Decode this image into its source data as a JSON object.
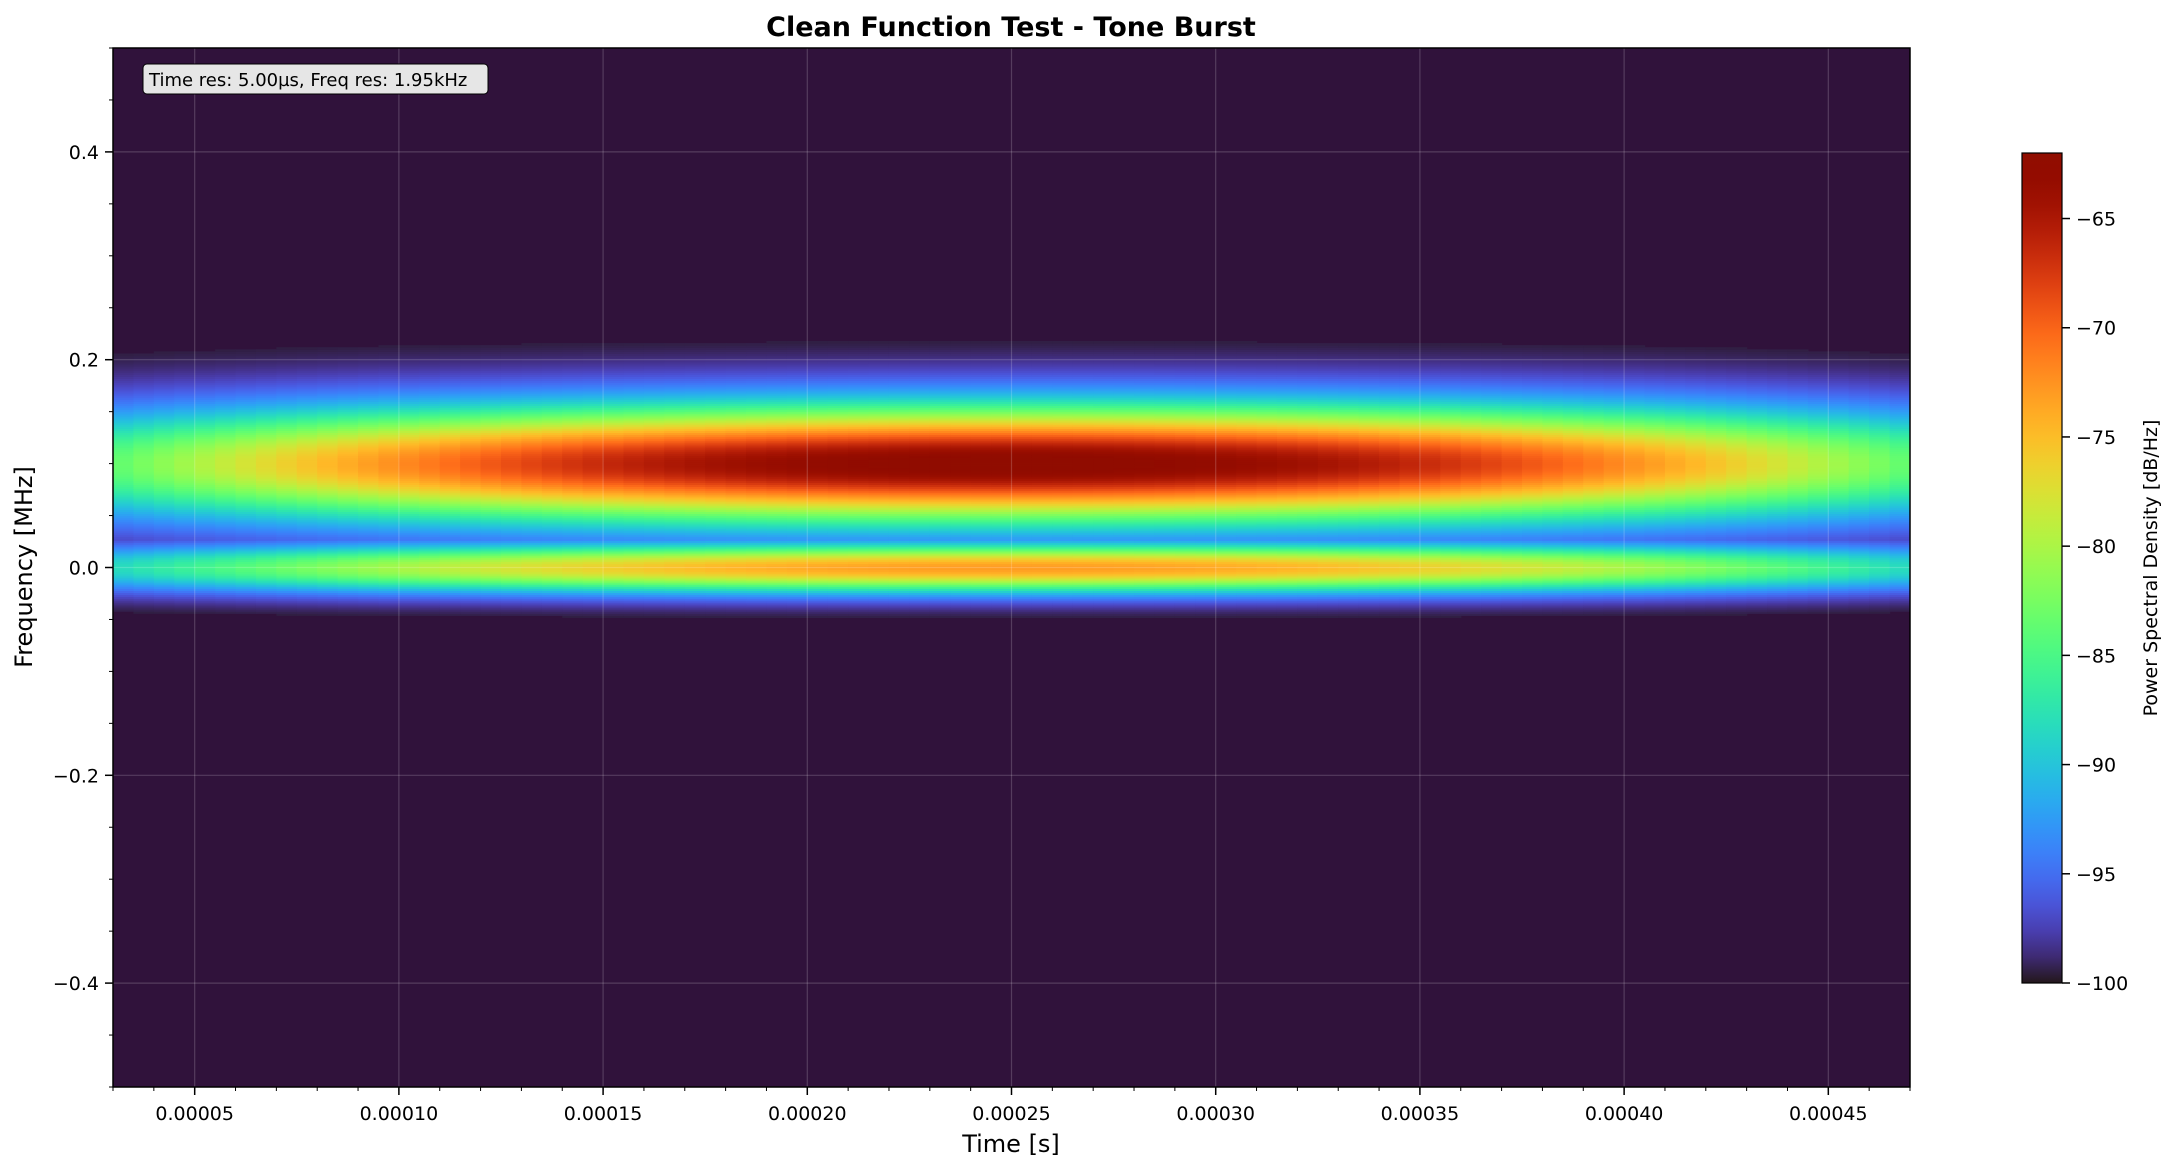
{
  "chart_data": {
    "type": "heatmap",
    "title": "Clean Function Test - Tone Burst",
    "xlabel": "Time [s]",
    "ylabel": "Frequency [MHz]",
    "colorbar_label": "Power Spectral Density [dB/Hz]",
    "annotation": "Time res: 5.00µs, Freq res: 1.95kHz",
    "xlim": [
      3e-05,
      0.00047
    ],
    "ylim": [
      -0.5,
      0.5
    ],
    "clim": [
      -100,
      -62
    ],
    "x_ticks": [
      {
        "value": 5e-05,
        "label": "0.00005"
      },
      {
        "value": 0.0001,
        "label": "0.00010"
      },
      {
        "value": 0.00015,
        "label": "0.00015"
      },
      {
        "value": 0.0002,
        "label": "0.00020"
      },
      {
        "value": 0.00025,
        "label": "0.00025"
      },
      {
        "value": 0.0003,
        "label": "0.00030"
      },
      {
        "value": 0.00035,
        "label": "0.00035"
      },
      {
        "value": 0.0004,
        "label": "0.00040"
      },
      {
        "value": 0.00045,
        "label": "0.00045"
      }
    ],
    "y_ticks": [
      {
        "value": 0.4,
        "label": "0.4"
      },
      {
        "value": 0.2,
        "label": "0.2"
      },
      {
        "value": 0.0,
        "label": "0.0"
      },
      {
        "value": -0.2,
        "label": "−0.2"
      },
      {
        "value": -0.4,
        "label": "−0.4"
      }
    ],
    "colorbar_ticks": [
      {
        "value": -65,
        "label": "−65"
      },
      {
        "value": -70,
        "label": "−70"
      },
      {
        "value": -75,
        "label": "−75"
      },
      {
        "value": -80,
        "label": "−80"
      },
      {
        "value": -85,
        "label": "−85"
      },
      {
        "value": -90,
        "label": "−90"
      },
      {
        "value": -95,
        "label": "−95"
      },
      {
        "value": -100,
        "label": "−100"
      }
    ],
    "bands": [
      {
        "center_mhz": 0.1,
        "peak_db": -62,
        "floor_db": -100,
        "freq_width_mhz": 0.0565,
        "time_center_s": 0.00025,
        "time_halfspan_s": 0.00029
      },
      {
        "center_mhz": 0.0,
        "peak_db": -73,
        "floor_db": -100,
        "freq_width_mhz": 0.024,
        "time_center_s": 0.00025,
        "time_halfspan_s": 0.00029
      }
    ],
    "grid": true,
    "colormap": "turbo",
    "colorbar_position": "right",
    "colors": {
      "background": "#30123b",
      "grid": "#ffffff"
    }
  }
}
